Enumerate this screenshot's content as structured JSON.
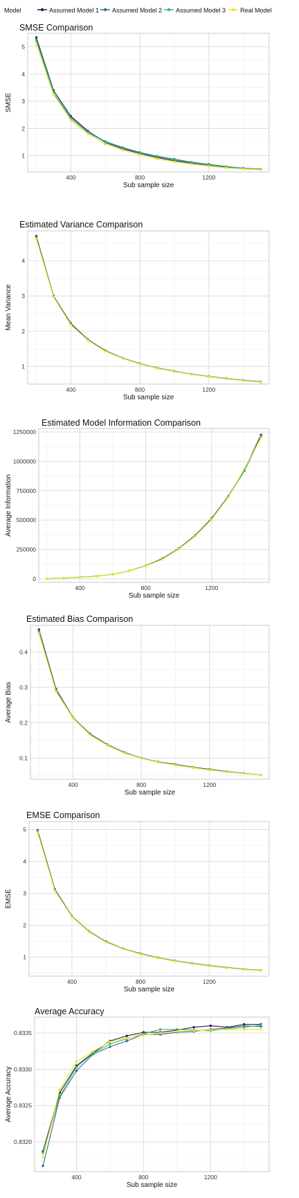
{
  "legend": {
    "title": "Model",
    "items": [
      {
        "label": "Assumed Model 1",
        "color": "#3b0f4f"
      },
      {
        "label": "Assumed Model 2",
        "color": "#2e6e8e"
      },
      {
        "label": "Assumed Model 3",
        "color": "#2fb67c"
      },
      {
        "label": "Real Model",
        "color": "#f2e51d"
      }
    ]
  },
  "chart_data": [
    {
      "type": "line",
      "title": "SMSE Comparison",
      "xlabel": "Sub sample size",
      "ylabel": "SMSE",
      "xlim": [
        150,
        1550
      ],
      "ylim": [
        0.4,
        5.5
      ],
      "xticks": [
        400,
        800,
        1200
      ],
      "xtick_labels": [
        "400",
        "800",
        "1200"
      ],
      "yticks": [
        1,
        2,
        3,
        4,
        5
      ],
      "ytick_labels": [
        "1",
        "2",
        "3",
        "4",
        "5"
      ],
      "grid": true,
      "x": [
        200,
        300,
        400,
        500,
        600,
        700,
        800,
        900,
        1000,
        1100,
        1200,
        1300,
        1400,
        1500
      ],
      "series": [
        {
          "name": "Assumed Model 1",
          "values": [
            5.35,
            3.4,
            2.45,
            1.9,
            1.48,
            1.25,
            1.08,
            0.93,
            0.81,
            0.72,
            0.65,
            0.58,
            0.53,
            0.5
          ]
        },
        {
          "name": "Assumed Model 2",
          "values": [
            5.3,
            3.38,
            2.42,
            1.88,
            1.52,
            1.3,
            1.12,
            0.98,
            0.87,
            0.76,
            0.68,
            0.6,
            0.54,
            0.5
          ]
        },
        {
          "name": "Assumed Model 3",
          "values": [
            5.22,
            3.3,
            2.36,
            1.84,
            1.5,
            1.28,
            1.1,
            0.96,
            0.85,
            0.74,
            0.66,
            0.59,
            0.53,
            0.49
          ]
        },
        {
          "name": "Real Model",
          "values": [
            5.1,
            3.25,
            2.3,
            1.8,
            1.42,
            1.2,
            1.02,
            0.88,
            0.77,
            0.68,
            0.61,
            0.55,
            0.51,
            0.48
          ]
        }
      ]
    },
    {
      "type": "line",
      "title": "Estimated Variance Comparison",
      "xlabel": "Sub sample size",
      "ylabel": "Mean Variance",
      "xlim": [
        150,
        1550
      ],
      "ylim": [
        0.5,
        4.85
      ],
      "xticks": [
        400,
        800,
        1200
      ],
      "xtick_labels": [
        "400",
        "800",
        "1200"
      ],
      "yticks": [
        1,
        2,
        3,
        4
      ],
      "ytick_labels": [
        "1",
        "2",
        "3",
        "4"
      ],
      "grid": true,
      "x": [
        200,
        300,
        400,
        500,
        600,
        700,
        800,
        900,
        1000,
        1100,
        1200,
        1300,
        1400,
        1500
      ],
      "series": [
        {
          "name": "Assumed Model 1",
          "values": [
            4.7,
            3.0,
            2.22,
            1.76,
            1.45,
            1.24,
            1.08,
            0.95,
            0.86,
            0.78,
            0.71,
            0.66,
            0.6,
            0.56
          ]
        },
        {
          "name": "Assumed Model 2",
          "values": [
            4.68,
            2.99,
            2.2,
            1.75,
            1.44,
            1.24,
            1.08,
            0.96,
            0.87,
            0.78,
            0.72,
            0.66,
            0.61,
            0.57
          ]
        },
        {
          "name": "Assumed Model 3",
          "values": [
            4.65,
            2.98,
            2.19,
            1.74,
            1.44,
            1.23,
            1.07,
            0.95,
            0.86,
            0.78,
            0.71,
            0.65,
            0.6,
            0.56
          ]
        },
        {
          "name": "Real Model",
          "values": [
            4.62,
            2.97,
            2.18,
            1.74,
            1.43,
            1.23,
            1.07,
            0.95,
            0.86,
            0.77,
            0.71,
            0.65,
            0.6,
            0.56
          ]
        }
      ]
    },
    {
      "type": "line",
      "title": "Estimated Model Information Comparison",
      "xlabel": "Sub sample size",
      "ylabel": "Average Information",
      "xlim": [
        150,
        1550
      ],
      "ylim": [
        -30000,
        1280000
      ],
      "xticks": [
        400,
        800,
        1200
      ],
      "xtick_labels": [
        "400",
        "800",
        "1200"
      ],
      "yticks": [
        0,
        250000,
        500000,
        750000,
        1000000,
        1250000
      ],
      "ytick_labels": [
        "0",
        "250000",
        "500000",
        "750000",
        "1000000",
        "1250000"
      ],
      "grid": true,
      "x": [
        200,
        300,
        400,
        500,
        600,
        700,
        800,
        900,
        1000,
        1100,
        1200,
        1300,
        1400,
        1500
      ],
      "series": [
        {
          "name": "Assumed Model 1",
          "values": [
            1500,
            6000,
            15000,
            22000,
            38000,
            68000,
            112000,
            172000,
            258000,
            370000,
            515000,
            700000,
            930000,
            1225000
          ]
        },
        {
          "name": "Assumed Model 2",
          "values": [
            1500,
            6000,
            15000,
            22000,
            38000,
            68000,
            112000,
            170000,
            256000,
            368000,
            512000,
            698000,
            925000,
            1218000
          ]
        },
        {
          "name": "Assumed Model 3",
          "values": [
            1500,
            6000,
            15000,
            22000,
            38000,
            68000,
            111000,
            168000,
            255000,
            366000,
            510000,
            695000,
            920000,
            1210000
          ]
        },
        {
          "name": "Real Model",
          "values": [
            1500,
            6000,
            14500,
            21500,
            37000,
            67000,
            110000,
            165000,
            252000,
            362000,
            505000,
            690000,
            940000,
            1200000
          ]
        }
      ]
    },
    {
      "type": "line",
      "title": "Estimated Bias Comparison",
      "xlabel": "Sub sample size",
      "ylabel": "Average Bias",
      "xlim": [
        150,
        1550
      ],
      "ylim": [
        0.04,
        0.475
      ],
      "xticks": [
        400,
        800,
        1200
      ],
      "xtick_labels": [
        "400",
        "800",
        "1200"
      ],
      "yticks": [
        0.1,
        0.2,
        0.3,
        0.4
      ],
      "ytick_labels": [
        "0.1",
        "0.2",
        "0.3",
        "0.4"
      ],
      "grid": true,
      "x": [
        200,
        300,
        400,
        500,
        600,
        700,
        800,
        900,
        1000,
        1100,
        1200,
        1300,
        1400,
        1500
      ],
      "series": [
        {
          "name": "Assumed Model 1",
          "values": [
            0.463,
            0.295,
            0.214,
            0.168,
            0.138,
            0.116,
            0.1,
            0.089,
            0.082,
            0.074,
            0.068,
            0.062,
            0.057,
            0.052
          ]
        },
        {
          "name": "Assumed Model 2",
          "values": [
            0.46,
            0.293,
            0.214,
            0.167,
            0.137,
            0.115,
            0.1,
            0.088,
            0.081,
            0.073,
            0.067,
            0.061,
            0.057,
            0.052
          ]
        },
        {
          "name": "Assumed Model 3",
          "values": [
            0.458,
            0.29,
            0.213,
            0.166,
            0.137,
            0.115,
            0.1,
            0.088,
            0.081,
            0.073,
            0.067,
            0.061,
            0.057,
            0.052
          ]
        },
        {
          "name": "Real Model",
          "values": [
            0.452,
            0.288,
            0.212,
            0.165,
            0.136,
            0.114,
            0.099,
            0.088,
            0.08,
            0.073,
            0.066,
            0.061,
            0.056,
            0.052
          ]
        }
      ]
    },
    {
      "type": "line",
      "title": "EMSE Comparison",
      "xlabel": "Sub sample size",
      "ylabel": "EMSE",
      "xlim": [
        150,
        1550
      ],
      "ylim": [
        0.4,
        5.25
      ],
      "xticks": [
        400,
        800,
        1200
      ],
      "xtick_labels": [
        "400",
        "800",
        "1200"
      ],
      "yticks": [
        1,
        2,
        3,
        4,
        5
      ],
      "ytick_labels": [
        "1",
        "2",
        "3",
        "4",
        "5"
      ],
      "grid": true,
      "x": [
        200,
        300,
        400,
        500,
        600,
        700,
        800,
        900,
        1000,
        1100,
        1200,
        1300,
        1400,
        1500
      ],
      "series": [
        {
          "name": "Assumed Model 1",
          "values": [
            4.98,
            3.13,
            2.28,
            1.8,
            1.48,
            1.26,
            1.11,
            0.98,
            0.88,
            0.8,
            0.73,
            0.67,
            0.62,
            0.58
          ]
        },
        {
          "name": "Assumed Model 2",
          "values": [
            4.97,
            3.12,
            2.27,
            1.8,
            1.48,
            1.26,
            1.1,
            0.98,
            0.88,
            0.8,
            0.73,
            0.67,
            0.62,
            0.58
          ]
        },
        {
          "name": "Assumed Model 3",
          "values": [
            4.95,
            3.1,
            2.27,
            1.79,
            1.47,
            1.25,
            1.1,
            0.97,
            0.87,
            0.79,
            0.72,
            0.66,
            0.61,
            0.58
          ]
        },
        {
          "name": "Real Model",
          "values": [
            4.9,
            3.08,
            2.26,
            1.78,
            1.46,
            1.25,
            1.09,
            0.97,
            0.87,
            0.79,
            0.72,
            0.66,
            0.61,
            0.57
          ]
        }
      ]
    },
    {
      "type": "line",
      "title": "Average Accuracy",
      "xlabel": "Sub sample size",
      "ylabel": "Average Accuracy",
      "xlim": [
        150,
        1550
      ],
      "ylim": [
        0.83159,
        0.83372
      ],
      "xticks": [
        400,
        800,
        1200
      ],
      "xtick_labels": [
        "400",
        "800",
        "1200"
      ],
      "yticks": [
        0.832,
        0.8325,
        0.833,
        0.8335
      ],
      "ytick_labels": [
        "0.8320",
        "0.8325",
        "0.8330",
        "0.8335"
      ],
      "grid": true,
      "x": [
        200,
        300,
        400,
        500,
        600,
        700,
        800,
        900,
        1000,
        1100,
        1200,
        1300,
        1400,
        1500
      ],
      "series": [
        {
          "name": "Assumed Model 1",
          "values": [
            0.83187,
            0.83268,
            0.83305,
            0.83323,
            0.83339,
            0.83346,
            0.83351,
            0.83351,
            0.83354,
            0.83358,
            0.8336,
            0.83358,
            0.83362,
            0.83362
          ]
        },
        {
          "name": "Assumed Model 2",
          "values": [
            0.83167,
            0.83261,
            0.83298,
            0.83321,
            0.83331,
            0.83339,
            0.83348,
            0.83348,
            0.83351,
            0.83352,
            0.83355,
            0.83357,
            0.8336,
            0.83359
          ]
        },
        {
          "name": "Assumed Model 3",
          "values": [
            0.83185,
            0.83263,
            0.83303,
            0.83322,
            0.83335,
            0.83342,
            0.83349,
            0.83355,
            0.83355,
            0.83354,
            0.83353,
            0.83356,
            0.83358,
            0.83361
          ]
        },
        {
          "name": "Real Model",
          "values": [
            0.83179,
            0.83272,
            0.83311,
            0.83325,
            0.83338,
            0.83343,
            0.83347,
            0.8335,
            0.83352,
            0.83353,
            0.83354,
            0.83355,
            0.83355,
            0.83355
          ]
        }
      ]
    }
  ]
}
